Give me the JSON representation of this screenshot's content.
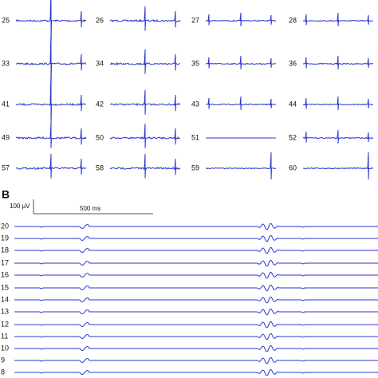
{
  "panel_a": {
    "electrodes": [
      "25",
      "26",
      "27",
      "28",
      "33",
      "34",
      "35",
      "36",
      "41",
      "42",
      "43",
      "44",
      "49",
      "50",
      "51",
      "52",
      "57",
      "58",
      "59",
      "60"
    ]
  },
  "panel_b": {
    "label": "B",
    "scale_voltage": "100 µV",
    "scale_time": "500 ms",
    "channels": [
      "20",
      "19",
      "18",
      "17",
      "16",
      "15",
      "14",
      "13",
      "12",
      "11",
      "10",
      "9",
      "8"
    ]
  }
}
